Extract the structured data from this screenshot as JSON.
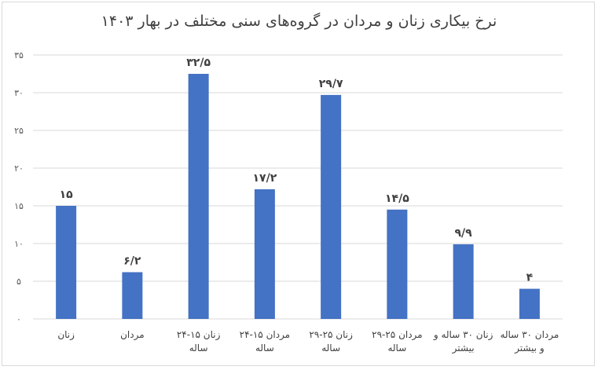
{
  "chart_data": {
    "type": "bar",
    "title": "نرخ بیکاری زنان و مردان در گروه‌های سنی مختلف در بهار ۱۴۰۳",
    "xlabel": "",
    "ylabel": "",
    "ylim": [
      0,
      35
    ],
    "yticks": [
      0,
      5,
      10,
      15,
      20,
      25,
      30,
      35
    ],
    "ytick_labels": [
      "۰",
      "۵",
      "۱۰",
      "۱۵",
      "۲۰",
      "۲۵",
      "۳۰",
      "۳۵"
    ],
    "grid": true,
    "legend": "none",
    "bar_color": "#4472c4",
    "categories": [
      [
        "زنان"
      ],
      [
        "مردان"
      ],
      [
        "زنان ۱۵-۲۴",
        "ساله"
      ],
      [
        "مردان ۱۵-۲۴",
        "ساله"
      ],
      [
        "زنان ۲۵-۲۹",
        "ساله"
      ],
      [
        "مردان ۲۵-۲۹",
        "ساله"
      ],
      [
        "زنان ۳۰ ساله و",
        "بیشتر"
      ],
      [
        "مردان ۳۰ ساله",
        "و بیشتر"
      ]
    ],
    "values": [
      15,
      6.2,
      32.5,
      17.2,
      29.7,
      14.5,
      9.9,
      4
    ],
    "value_labels": [
      "۱۵",
      "۶/۲",
      "۳۲/۵",
      "۱۷/۲",
      "۲۹/۷",
      "۱۴/۵",
      "۹/۹",
      "۴"
    ]
  }
}
